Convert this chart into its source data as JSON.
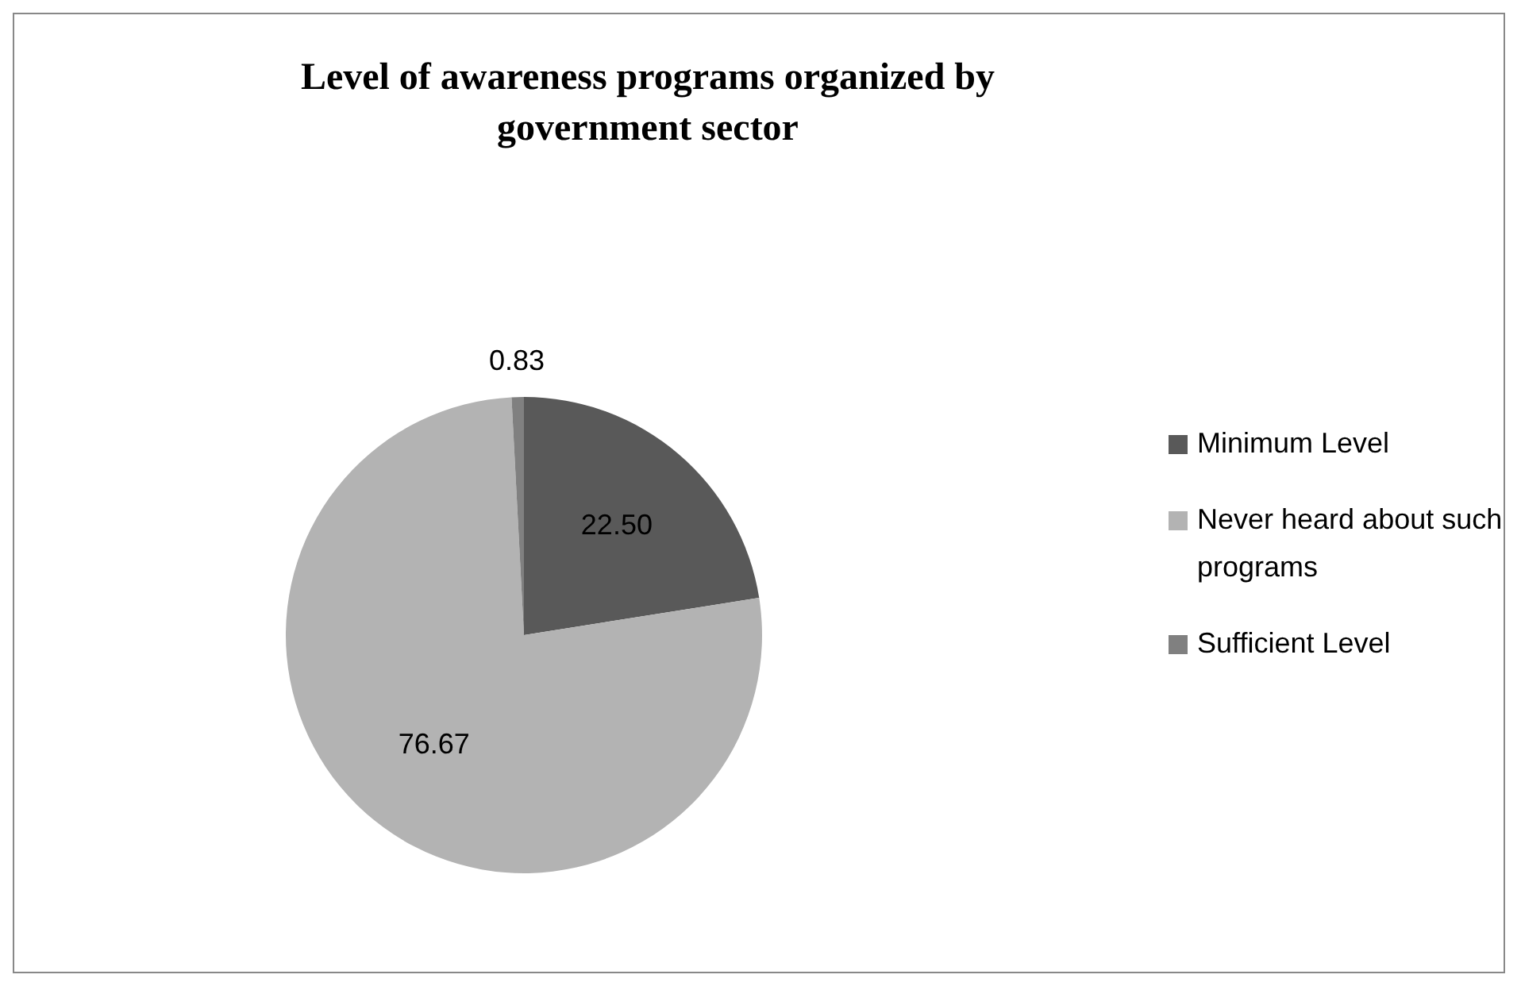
{
  "chart_data": {
    "type": "pie",
    "title": "Level of awareness programs organized by government sector",
    "categories": [
      "Minimum Level",
      "Never heard about such programs",
      "Sufficient Level"
    ],
    "values": [
      22.5,
      76.67,
      0.83
    ],
    "value_labels": [
      "22.50",
      "76.67",
      "0.83"
    ],
    "colors": [
      "#595959",
      "#b3b3b3",
      "#808080"
    ],
    "legend": "right"
  }
}
